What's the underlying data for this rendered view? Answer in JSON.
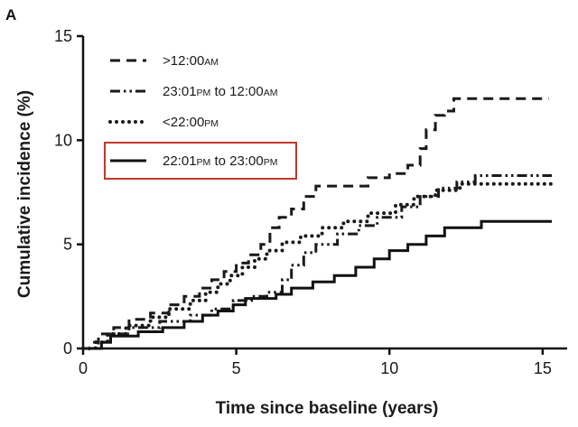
{
  "chart_data": {
    "type": "line",
    "step": true,
    "panel_label": "A",
    "xlabel": "Time since baseline (years)",
    "ylabel": "Cumulative incidence (%)",
    "xlim": [
      0,
      15.8
    ],
    "ylim": [
      0,
      15
    ],
    "xticks": [
      0,
      5,
      10,
      15
    ],
    "yticks": [
      0,
      5,
      10,
      15
    ],
    "grid": false,
    "legend_position": "top-left",
    "highlighted_series": 3,
    "highlight_color": "#c0392b",
    "series": [
      {
        "name": ">12:00AM",
        "label_parts": [
          {
            "t": ">12:00",
            "s": false
          },
          {
            "t": "AM",
            "s": true
          }
        ],
        "dash": "dash",
        "color": "#1a1a1a",
        "points": [
          [
            0,
            0
          ],
          [
            0.3,
            0
          ],
          [
            0.3,
            0.3
          ],
          [
            0.5,
            0.3
          ],
          [
            0.5,
            0.7
          ],
          [
            1.0,
            0.7
          ],
          [
            1.0,
            1.0
          ],
          [
            1.5,
            1.0
          ],
          [
            1.5,
            1.4
          ],
          [
            2.2,
            1.4
          ],
          [
            2.2,
            1.7
          ],
          [
            2.8,
            1.7
          ],
          [
            2.8,
            2.1
          ],
          [
            3.3,
            2.1
          ],
          [
            3.3,
            2.5
          ],
          [
            3.8,
            2.5
          ],
          [
            3.8,
            2.9
          ],
          [
            4.2,
            2.9
          ],
          [
            4.2,
            3.3
          ],
          [
            4.6,
            3.3
          ],
          [
            4.6,
            3.7
          ],
          [
            5.0,
            3.7
          ],
          [
            5.0,
            4.1
          ],
          [
            5.4,
            4.1
          ],
          [
            5.4,
            4.5
          ],
          [
            5.8,
            4.5
          ],
          [
            5.8,
            5.0
          ],
          [
            6.1,
            5.0
          ],
          [
            6.1,
            5.8
          ],
          [
            6.4,
            5.8
          ],
          [
            6.4,
            6.3
          ],
          [
            6.8,
            6.3
          ],
          [
            6.8,
            6.7
          ],
          [
            7.2,
            6.7
          ],
          [
            7.2,
            7.3
          ],
          [
            7.6,
            7.3
          ],
          [
            7.6,
            7.8
          ],
          [
            9.3,
            7.8
          ],
          [
            9.3,
            8.2
          ],
          [
            10.0,
            8.2
          ],
          [
            10.0,
            8.4
          ],
          [
            10.6,
            8.4
          ],
          [
            10.6,
            8.8
          ],
          [
            11.0,
            8.8
          ],
          [
            11.0,
            9.6
          ],
          [
            11.2,
            9.6
          ],
          [
            11.2,
            10.5
          ],
          [
            11.5,
            10.5
          ],
          [
            11.5,
            11.2
          ],
          [
            11.8,
            11.2
          ],
          [
            11.8,
            11.4
          ],
          [
            12.1,
            11.4
          ],
          [
            12.1,
            12.0
          ],
          [
            15.2,
            12.0
          ]
        ]
      },
      {
        "name": "23:01PM to 12:00AM",
        "label_parts": [
          {
            "t": "23:01",
            "s": false
          },
          {
            "t": "PM",
            "s": true
          },
          {
            "t": " to 12:00",
            "s": false
          },
          {
            "t": "AM",
            "s": true
          }
        ],
        "dash": "dashdotdot",
        "color": "#1a1a1a",
        "points": [
          [
            0,
            0
          ],
          [
            0.5,
            0
          ],
          [
            0.5,
            0.3
          ],
          [
            0.9,
            0.3
          ],
          [
            0.9,
            0.7
          ],
          [
            1.5,
            0.7
          ],
          [
            1.5,
            1.0
          ],
          [
            2.5,
            1.0
          ],
          [
            2.5,
            1.3
          ],
          [
            3.5,
            1.3
          ],
          [
            3.5,
            1.6
          ],
          [
            4.2,
            1.6
          ],
          [
            4.2,
            1.9
          ],
          [
            4.9,
            1.9
          ],
          [
            4.9,
            2.3
          ],
          [
            5.5,
            2.3
          ],
          [
            5.5,
            2.5
          ],
          [
            6.0,
            2.5
          ],
          [
            6.0,
            2.7
          ],
          [
            6.5,
            2.7
          ],
          [
            6.5,
            3.3
          ],
          [
            6.8,
            3.3
          ],
          [
            6.8,
            4.0
          ],
          [
            7.2,
            4.0
          ],
          [
            7.2,
            4.6
          ],
          [
            7.6,
            4.6
          ],
          [
            7.6,
            5.0
          ],
          [
            8.3,
            5.0
          ],
          [
            8.3,
            5.5
          ],
          [
            9.0,
            5.5
          ],
          [
            9.0,
            5.9
          ],
          [
            9.6,
            5.9
          ],
          [
            9.6,
            6.3
          ],
          [
            10.4,
            6.3
          ],
          [
            10.4,
            6.8
          ],
          [
            11.0,
            6.8
          ],
          [
            11.0,
            7.3
          ],
          [
            11.6,
            7.3
          ],
          [
            11.6,
            7.7
          ],
          [
            12.2,
            7.7
          ],
          [
            12.2,
            8.0
          ],
          [
            12.8,
            8.0
          ],
          [
            12.8,
            8.3
          ],
          [
            15.3,
            8.3
          ]
        ]
      },
      {
        "name": "<22:00PM",
        "label_parts": [
          {
            "t": "<22:00",
            "s": false
          },
          {
            "t": "PM",
            "s": true
          }
        ],
        "dash": "dot",
        "color": "#1a1a1a",
        "points": [
          [
            0,
            0
          ],
          [
            0.4,
            0
          ],
          [
            0.4,
            0.3
          ],
          [
            0.8,
            0.3
          ],
          [
            0.8,
            0.7
          ],
          [
            1.4,
            0.7
          ],
          [
            1.4,
            1.1
          ],
          [
            2.2,
            1.1
          ],
          [
            2.2,
            1.5
          ],
          [
            2.8,
            1.5
          ],
          [
            2.8,
            1.9
          ],
          [
            3.5,
            1.9
          ],
          [
            3.5,
            2.3
          ],
          [
            4.0,
            2.3
          ],
          [
            4.0,
            2.7
          ],
          [
            4.4,
            2.7
          ],
          [
            4.4,
            3.1
          ],
          [
            4.8,
            3.1
          ],
          [
            4.8,
            3.5
          ],
          [
            5.2,
            3.5
          ],
          [
            5.2,
            3.9
          ],
          [
            5.6,
            3.9
          ],
          [
            5.6,
            4.3
          ],
          [
            6.0,
            4.3
          ],
          [
            6.0,
            4.7
          ],
          [
            6.5,
            4.7
          ],
          [
            6.5,
            5.1
          ],
          [
            7.1,
            5.1
          ],
          [
            7.1,
            5.4
          ],
          [
            7.8,
            5.4
          ],
          [
            7.8,
            5.8
          ],
          [
            8.5,
            5.8
          ],
          [
            8.5,
            6.1
          ],
          [
            9.3,
            6.1
          ],
          [
            9.3,
            6.5
          ],
          [
            10.2,
            6.5
          ],
          [
            10.2,
            6.9
          ],
          [
            10.8,
            6.9
          ],
          [
            10.8,
            7.3
          ],
          [
            11.5,
            7.3
          ],
          [
            11.5,
            7.6
          ],
          [
            12.3,
            7.6
          ],
          [
            12.3,
            7.9
          ],
          [
            15.3,
            7.9
          ]
        ]
      },
      {
        "name": "22:01PM to 23:00PM",
        "label_parts": [
          {
            "t": "22:01",
            "s": false
          },
          {
            "t": "PM",
            "s": true
          },
          {
            "t": " to 23:00",
            "s": false
          },
          {
            "t": "PM",
            "s": true
          }
        ],
        "dash": "solid",
        "color": "#111111",
        "points": [
          [
            0,
            0
          ],
          [
            0.6,
            0
          ],
          [
            0.6,
            0.3
          ],
          [
            0.9,
            0.3
          ],
          [
            0.9,
            0.6
          ],
          [
            1.8,
            0.6
          ],
          [
            1.8,
            0.8
          ],
          [
            2.6,
            0.8
          ],
          [
            2.6,
            1.0
          ],
          [
            3.3,
            1.0
          ],
          [
            3.3,
            1.3
          ],
          [
            3.9,
            1.3
          ],
          [
            3.9,
            1.6
          ],
          [
            4.4,
            1.6
          ],
          [
            4.4,
            1.8
          ],
          [
            4.9,
            1.8
          ],
          [
            4.9,
            2.1
          ],
          [
            5.3,
            2.1
          ],
          [
            5.3,
            2.4
          ],
          [
            6.3,
            2.4
          ],
          [
            6.3,
            2.6
          ],
          [
            6.8,
            2.6
          ],
          [
            6.8,
            2.9
          ],
          [
            7.5,
            2.9
          ],
          [
            7.5,
            3.2
          ],
          [
            8.2,
            3.2
          ],
          [
            8.2,
            3.5
          ],
          [
            8.9,
            3.5
          ],
          [
            8.9,
            3.9
          ],
          [
            9.5,
            3.9
          ],
          [
            9.5,
            4.3
          ],
          [
            10.0,
            4.3
          ],
          [
            10.0,
            4.7
          ],
          [
            10.6,
            4.7
          ],
          [
            10.6,
            5.0
          ],
          [
            11.2,
            5.0
          ],
          [
            11.2,
            5.4
          ],
          [
            11.8,
            5.4
          ],
          [
            11.8,
            5.8
          ],
          [
            13.0,
            5.8
          ],
          [
            13.0,
            6.1
          ],
          [
            15.3,
            6.1
          ]
        ]
      }
    ]
  }
}
